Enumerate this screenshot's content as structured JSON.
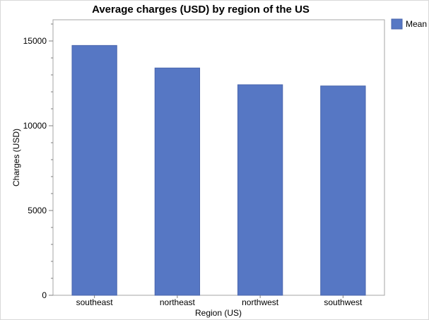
{
  "chart_data": {
    "type": "bar",
    "title": "Average charges (USD) by region of the US",
    "xlabel": "Region (US)",
    "ylabel": "Charges (USD)",
    "categories": [
      "southeast",
      "northeast",
      "northwest",
      "southwest"
    ],
    "series": [
      {
        "name": "Mean",
        "values": [
          14735,
          13406,
          12418,
          12347
        ]
      }
    ],
    "ylim": [
      0,
      16250
    ],
    "yticks": [
      0,
      5000,
      10000,
      15000
    ],
    "ytick_labels": [
      "0",
      "5000",
      "10000",
      "15000"
    ],
    "minor_tick_step": 1000,
    "grid": false,
    "legend_position": "top-right",
    "colors": {
      "bar": "#5677c4",
      "bar_stroke": "#4a66ad",
      "axis": "#7f7f7f",
      "text": "#000000"
    }
  }
}
